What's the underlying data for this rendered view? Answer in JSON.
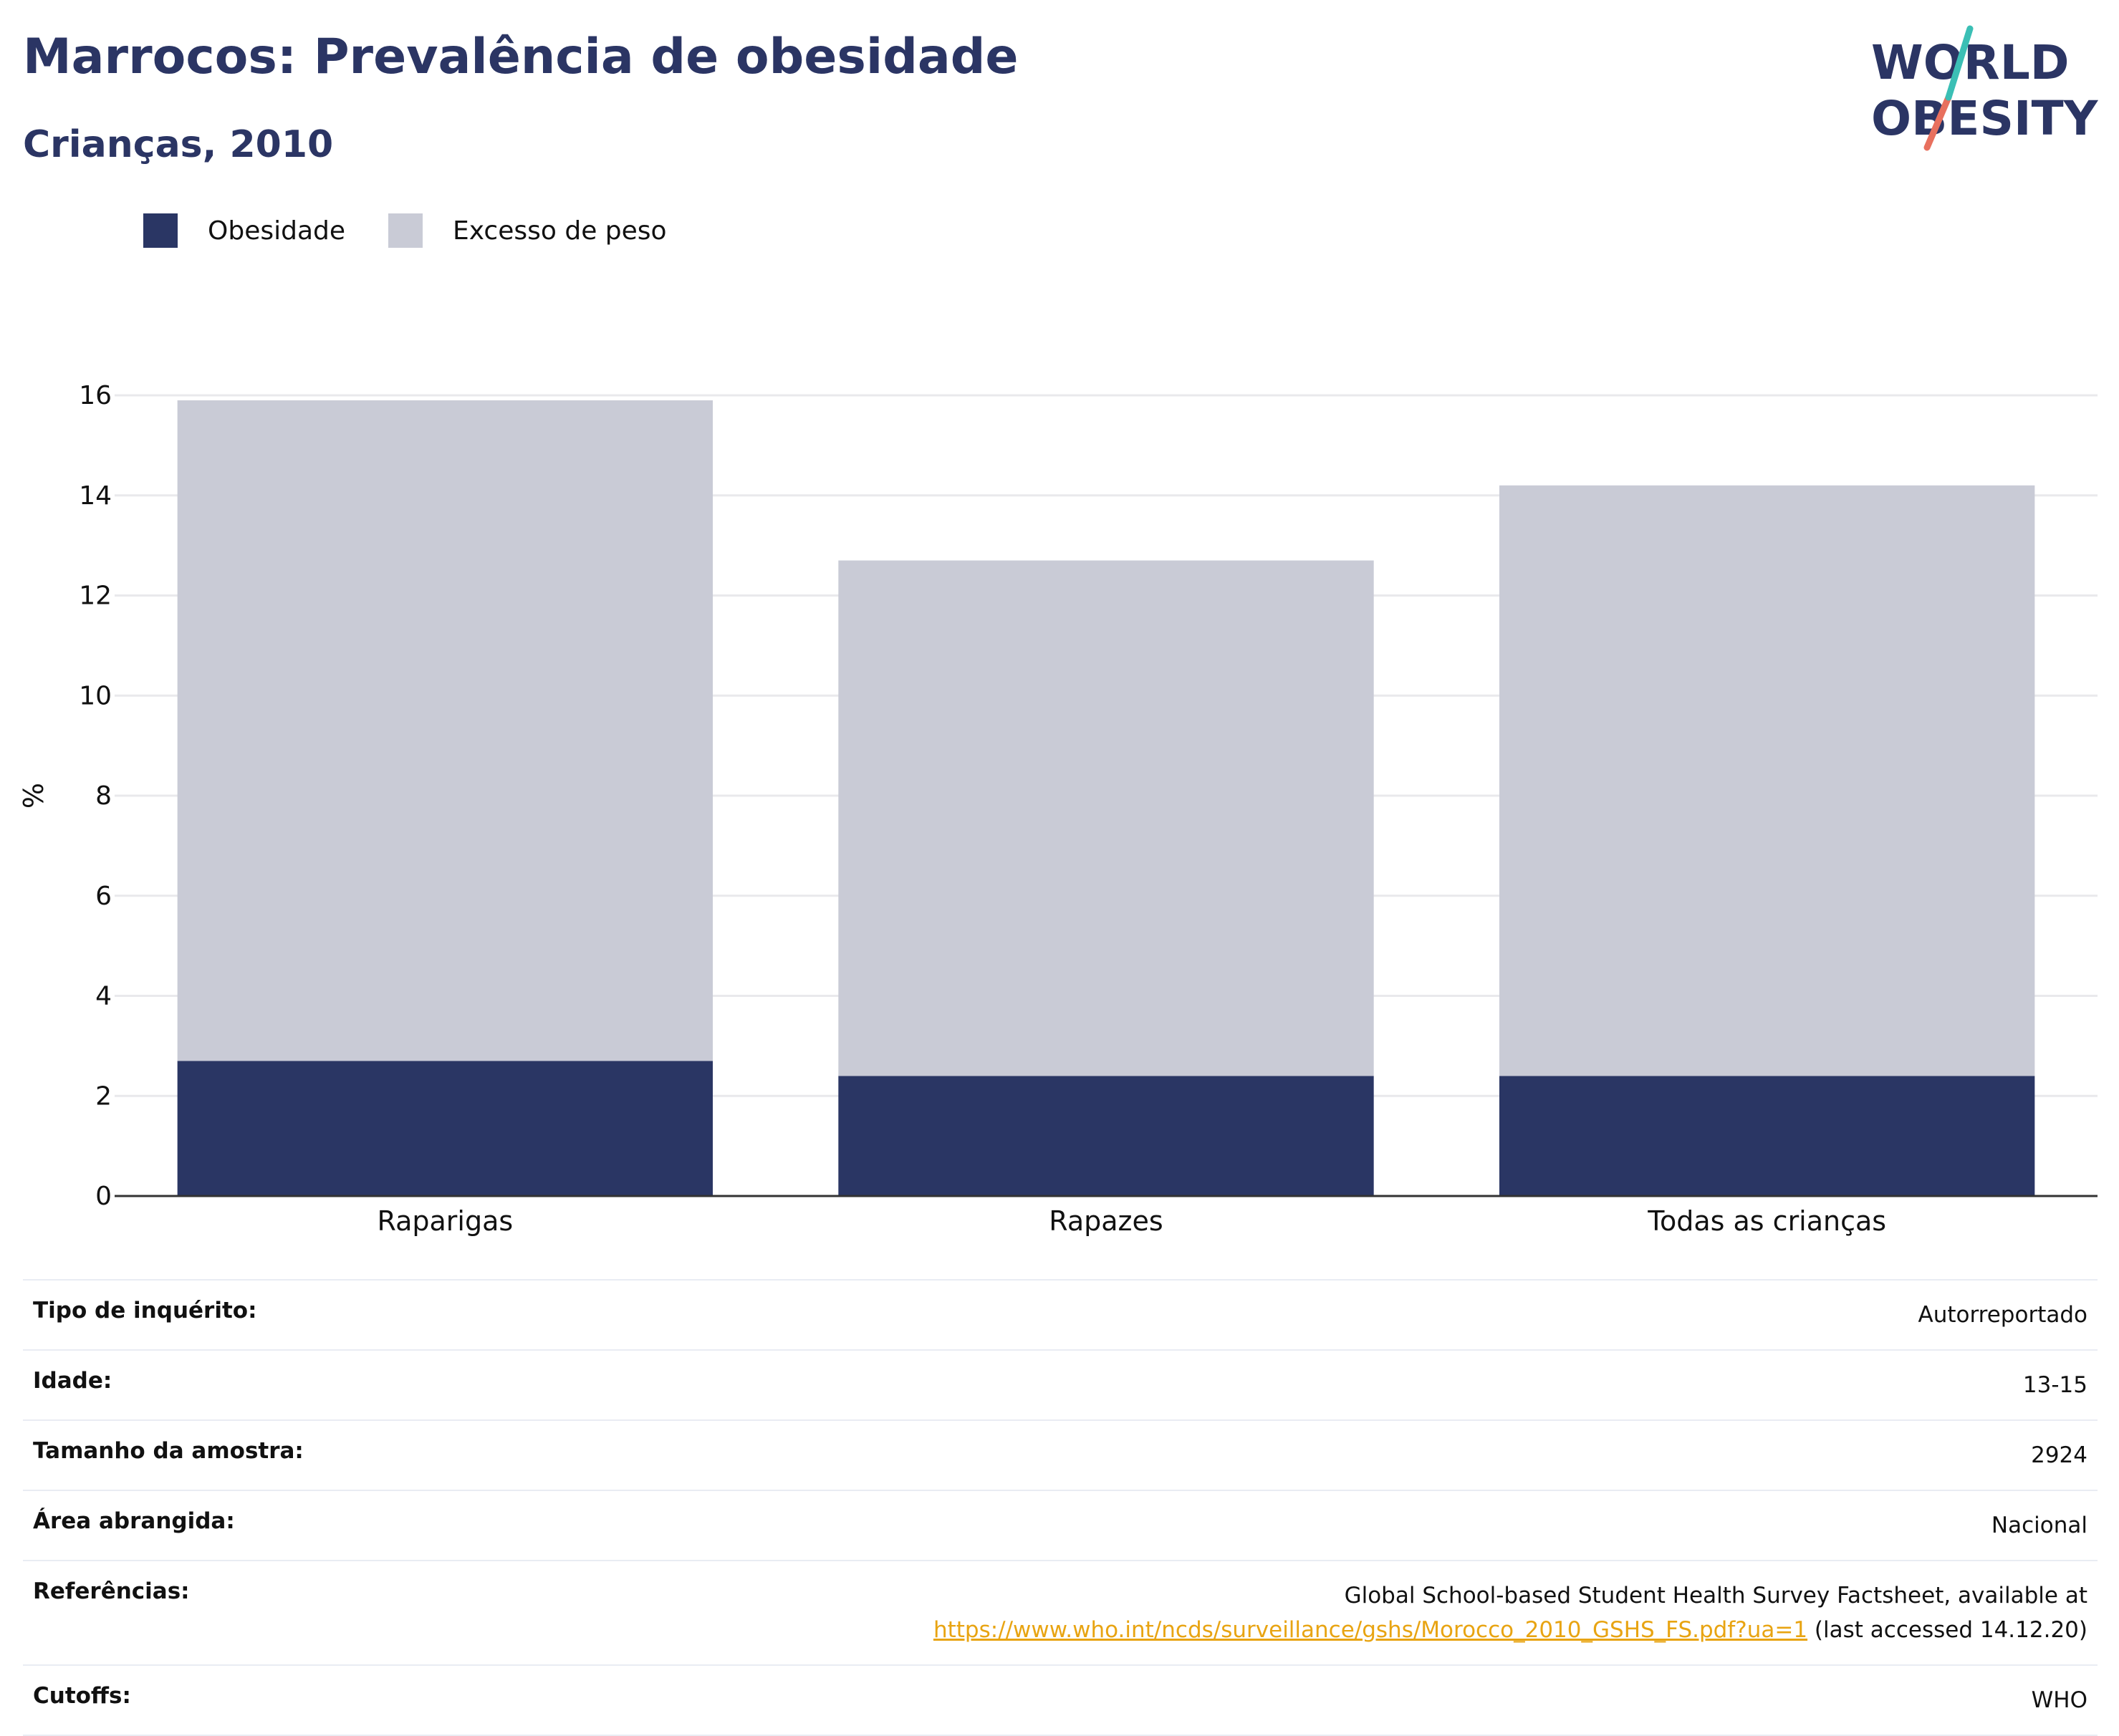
{
  "header": {
    "title": "Marrocos: Prevalência de obesidade",
    "subtitle": "Crianças, 2010",
    "logo_line1": "WORLD",
    "logo_line2": "OBESITY"
  },
  "colors": {
    "obesity": "#2a3664",
    "overweight": "#c9cbd6",
    "title": "#2b3564",
    "link": "#e8a412"
  },
  "chart_data": {
    "type": "bar",
    "stacked": true,
    "categories": [
      "Raparigas",
      "Rapazes",
      "Todas as crianças"
    ],
    "series": [
      {
        "name": "Obesidade",
        "values": [
          2.7,
          2.4,
          2.4
        ]
      },
      {
        "name": "Excesso de peso",
        "values": [
          13.2,
          10.3,
          11.8
        ]
      }
    ],
    "ylabel": "%",
    "ylim": [
      0,
      16
    ],
    "yticks": [
      0,
      2,
      4,
      6,
      8,
      10,
      12,
      14,
      16
    ],
    "grid": true,
    "legend_position": "top-left"
  },
  "info": {
    "survey_type_label": "Tipo de inquérito:",
    "survey_type_value": "Autorreportado",
    "age_label": "Idade:",
    "age_value": "13-15",
    "sample_label": "Tamanho da amostra:",
    "sample_value": "2924",
    "area_label": "Área abrangida:",
    "area_value": "Nacional",
    "ref_label": "Referências:",
    "ref_line1": "Global School-based Student Health Survey Factsheet, available at",
    "ref_url": "https://www.who.int/ncds/surveillance/gshs/Morocco_2010_GSHS_FS.pdf?ua=1",
    "ref_suffix": " (last accessed 14.12.20)",
    "cutoffs_label": "Cutoffs:",
    "cutoffs_value": "WHO"
  }
}
